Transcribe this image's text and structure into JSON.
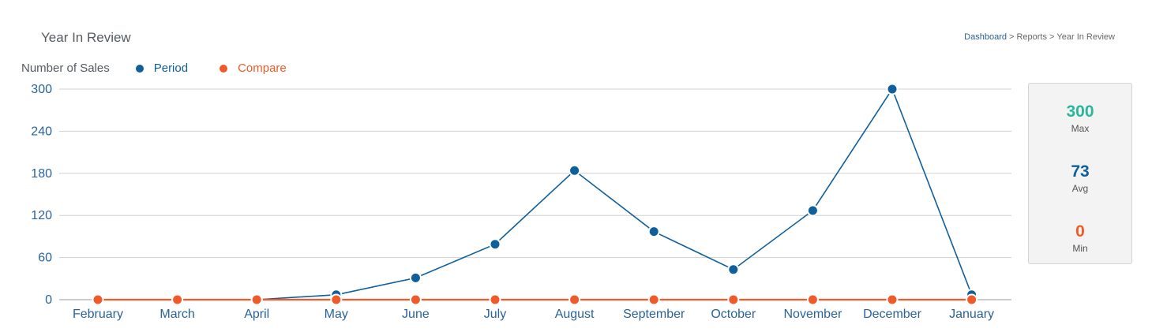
{
  "page_title": "Year In Review",
  "breadcrumb": {
    "dashboard": "Dashboard",
    "separator": ">",
    "reports": "Reports",
    "current": "Year In Review"
  },
  "legend": {
    "title": "Number of Sales",
    "period_label": "Period",
    "compare_label": "Compare"
  },
  "colors": {
    "period": "#0e5f9b",
    "compare": "#f05a28",
    "max": "#2bb59a",
    "grid": "#d0d0d0"
  },
  "stats": {
    "max_value": "300",
    "max_label": "Max",
    "avg_value": "73",
    "avg_label": "Avg",
    "min_value": "0",
    "min_label": "Min"
  },
  "chart_data": {
    "type": "line",
    "categories": [
      "February",
      "March",
      "April",
      "May",
      "June",
      "July",
      "August",
      "September",
      "October",
      "November",
      "December",
      "January"
    ],
    "series": [
      {
        "name": "Period",
        "values": [
          0,
          0,
          0,
          7,
          31,
          79,
          184,
          97,
          43,
          127,
          300,
          7
        ]
      },
      {
        "name": "Compare",
        "values": [
          0,
          0,
          0,
          0,
          0,
          0,
          0,
          0,
          0,
          0,
          0,
          0
        ]
      }
    ],
    "yticks": [
      0,
      60,
      120,
      180,
      240,
      300
    ],
    "ylim": [
      0,
      300
    ],
    "grid": true,
    "ylabel": "Number of Sales"
  }
}
